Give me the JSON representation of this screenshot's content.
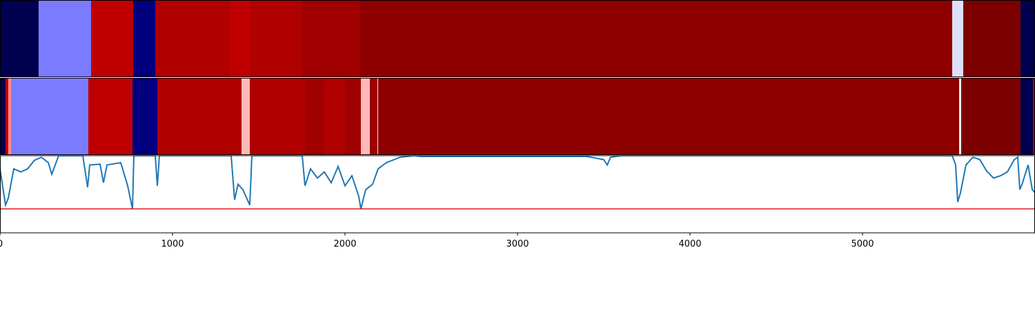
{
  "chart_data": [
    {
      "type": "segments",
      "xlim": [
        0,
        6000
      ],
      "segments": [
        {
          "start": 0,
          "end": 224,
          "color": "#000050"
        },
        {
          "start": 224,
          "end": 528,
          "color": "#7b7bff"
        },
        {
          "start": 528,
          "end": 772,
          "color": "#c00000"
        },
        {
          "start": 772,
          "end": 900,
          "color": "#00007f"
        },
        {
          "start": 900,
          "end": 1332,
          "color": "#b00000"
        },
        {
          "start": 1332,
          "end": 1452,
          "color": "#c00000"
        },
        {
          "start": 1452,
          "end": 1752,
          "color": "#b00000"
        },
        {
          "start": 1752,
          "end": 2084,
          "color": "#a00000"
        },
        {
          "start": 2084,
          "end": 5520,
          "color": "#8e0000"
        },
        {
          "start": 5520,
          "end": 5584,
          "color": "#dde0f8"
        },
        {
          "start": 5584,
          "end": 5916,
          "color": "#7d0000"
        },
        {
          "start": 5916,
          "end": 6000,
          "color": "#000050"
        }
      ]
    },
    {
      "type": "segments",
      "xlim": [
        0,
        6000
      ],
      "segments": [
        {
          "start": 0,
          "end": 32,
          "color": "#000050"
        },
        {
          "start": 32,
          "end": 48,
          "color": "#c00000"
        },
        {
          "start": 48,
          "end": 64,
          "color": "#ff9090"
        },
        {
          "start": 64,
          "end": 512,
          "color": "#7b7bff"
        },
        {
          "start": 512,
          "end": 768,
          "color": "#c00000"
        },
        {
          "start": 768,
          "end": 912,
          "color": "#00007f"
        },
        {
          "start": 912,
          "end": 1400,
          "color": "#b00000"
        },
        {
          "start": 1400,
          "end": 1448,
          "color": "#ffb8b8"
        },
        {
          "start": 1448,
          "end": 1772,
          "color": "#b00000"
        },
        {
          "start": 1772,
          "end": 1880,
          "color": "#a00000"
        },
        {
          "start": 1880,
          "end": 2000,
          "color": "#b00000"
        },
        {
          "start": 2000,
          "end": 2092,
          "color": "#a00000"
        },
        {
          "start": 2092,
          "end": 2144,
          "color": "#ffb8b8"
        },
        {
          "start": 2144,
          "end": 2188,
          "color": "#a00000"
        },
        {
          "start": 2188,
          "end": 2192,
          "color": "#ffd0d0"
        },
        {
          "start": 2192,
          "end": 5560,
          "color": "#8e0000"
        },
        {
          "start": 5560,
          "end": 5572,
          "color": "#f0f0ff"
        },
        {
          "start": 5572,
          "end": 5916,
          "color": "#7d0000"
        },
        {
          "start": 5916,
          "end": 5988,
          "color": "#000050"
        },
        {
          "start": 5988,
          "end": 6000,
          "color": "#c00000"
        }
      ]
    },
    {
      "type": "line",
      "xlim": [
        0,
        6000
      ],
      "ylim": [
        0,
        1
      ],
      "xticks": [
        0,
        1000,
        2000,
        3000,
        4000,
        5000
      ],
      "threshold": {
        "value": 0.31,
        "color": "#e41a1c"
      },
      "x": [
        0,
        32,
        48,
        80,
        120,
        160,
        200,
        240,
        280,
        300,
        340,
        480,
        508,
        520,
        580,
        600,
        620,
        700,
        740,
        768,
        776,
        900,
        912,
        924,
        1340,
        1360,
        1380,
        1408,
        1448,
        1460,
        1752,
        1768,
        1800,
        1840,
        1880,
        1920,
        1960,
        2000,
        2040,
        2080,
        2092,
        2120,
        2160,
        2192,
        2240,
        2320,
        2400,
        2440,
        3400,
        3500,
        3520,
        3540,
        3600,
        5520,
        5540,
        5552,
        5568,
        5600,
        5640,
        5680,
        5720,
        5760,
        5800,
        5840,
        5880,
        5900,
        5912,
        5928,
        5960,
        5984,
        6000
      ],
      "series": [
        {
          "color": "#1f77b4",
          "values": [
            0.83,
            0.36,
            0.45,
            0.83,
            0.79,
            0.83,
            0.94,
            0.98,
            0.91,
            0.76,
            1.0,
            1.0,
            0.59,
            0.88,
            0.89,
            0.65,
            0.88,
            0.91,
            0.61,
            0.31,
            1.0,
            1.0,
            0.61,
            1.0,
            1.0,
            0.43,
            0.63,
            0.56,
            0.36,
            1.0,
            1.0,
            0.61,
            0.83,
            0.71,
            0.79,
            0.65,
            0.86,
            0.61,
            0.74,
            0.47,
            0.31,
            0.56,
            0.63,
            0.83,
            0.91,
            0.98,
            1.0,
            0.99,
            0.99,
            0.95,
            0.88,
            0.98,
            1.0,
            1.0,
            0.88,
            0.4,
            0.52,
            0.88,
            0.98,
            0.95,
            0.8,
            0.71,
            0.74,
            0.79,
            0.95,
            0.98,
            0.56,
            0.65,
            0.88,
            0.56,
            0.52
          ]
        }
      ]
    }
  ]
}
